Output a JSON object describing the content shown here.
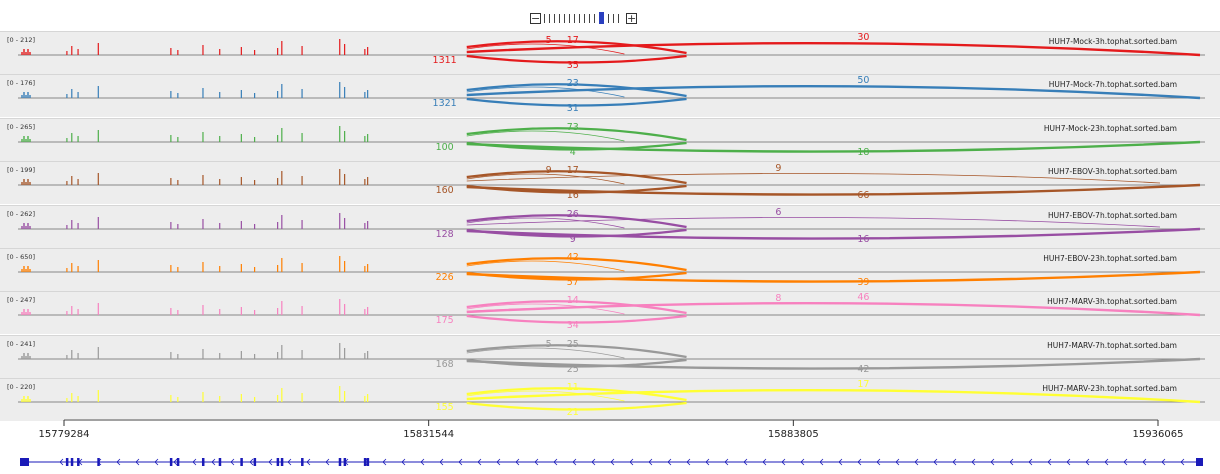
{
  "zoom": {
    "ticks": 15,
    "current": 11,
    "minus_label": "−",
    "plus_label": "+"
  },
  "axis": {
    "start": 15779284,
    "end": 15936065,
    "tick_labels": [
      "15779284",
      "15831544",
      "15883805",
      "15936065"
    ],
    "tick_values": [
      15779284,
      15831544,
      15883805,
      15936065
    ]
  },
  "coverage_positions": [
    15779700,
    15780400,
    15781300,
    15784200,
    15794600,
    15795600,
    15799200,
    15801600,
    15804700,
    15806600,
    15809900,
    15810500,
    15813400,
    15818800,
    15819500,
    15822400,
    15822800
  ],
  "junctions": {
    "start": 15837000,
    "mid": 15868500,
    "small_end": 15859600,
    "split_label": 15851600,
    "upper_label": 15832400,
    "lower_label": 15852200
  },
  "tracks": [
    {
      "name": "HUH7-Mock-3h.tophat.sorted.bam",
      "range": "[0 - 212]",
      "color": "#e41a1c",
      "short_label": "5",
      "top_count": "17",
      "long_count": "30",
      "bottom_count": "35",
      "side_count": "1311",
      "long_style": "top"
    },
    {
      "name": "HUH7-Mock-7h.tophat.sorted.bam",
      "range": "[0 - 176]",
      "color": "#377eb8",
      "short_label": "",
      "top_count": "23",
      "long_count": "50",
      "bottom_count": "31",
      "side_count": "1321",
      "long_style": "top"
    },
    {
      "name": "HUH7-Mock-23h.tophat.sorted.bam",
      "range": "[0 - 265]",
      "color": "#4daf4a",
      "short_label": "",
      "top_count": "73",
      "long_count": "18",
      "bottom_count": "4",
      "side_count": "100",
      "long_style": "bottom"
    },
    {
      "name": "HUH7-EBOV-3h.tophat.sorted.bam",
      "range": "[0 - 199]",
      "color": "#a65628",
      "short_label": "9",
      "top_count": "17",
      "long_count": "66",
      "bottom_count": "16",
      "side_count": "160",
      "long_style": "bottom",
      "extra_count": "9"
    },
    {
      "name": "HUH7-EBOV-7h.tophat.sorted.bam",
      "range": "[0 - 262]",
      "color": "#984ea3",
      "short_label": "",
      "top_count": "26",
      "long_count": "16",
      "bottom_count": "9",
      "side_count": "128",
      "long_style": "bottom",
      "extra_count": "6"
    },
    {
      "name": "HUH7-EBOV-23h.tophat.sorted.bam",
      "range": "[0 - 650]",
      "color": "#ff7f00",
      "short_label": "",
      "top_count": "42",
      "long_count": "39",
      "bottom_count": "57",
      "side_count": "226",
      "long_style": "bottom"
    },
    {
      "name": "HUH7-MARV-3h.tophat.sorted.bam",
      "range": "[0 - 247]",
      "color": "#f781bf",
      "short_label": "",
      "top_count": "14",
      "long_count": "46",
      "bottom_count": "34",
      "side_count": "175",
      "long_style": "top",
      "extra_count": "8"
    },
    {
      "name": "HUH7-MARV-7h.tophat.sorted.bam",
      "range": "[0 - 241]",
      "color": "#999999",
      "short_label": "5",
      "top_count": "25",
      "long_count": "42",
      "bottom_count": "25",
      "side_count": "168",
      "long_style": "bottom"
    },
    {
      "name": "HUH7-MARV-23h.tophat.sorted.bam",
      "range": "[0 - 220]",
      "color": "#ffff33",
      "short_label": "",
      "top_count": "11",
      "long_count": "17",
      "bottom_count": "21",
      "side_count": "155",
      "long_style": "top"
    }
  ]
}
